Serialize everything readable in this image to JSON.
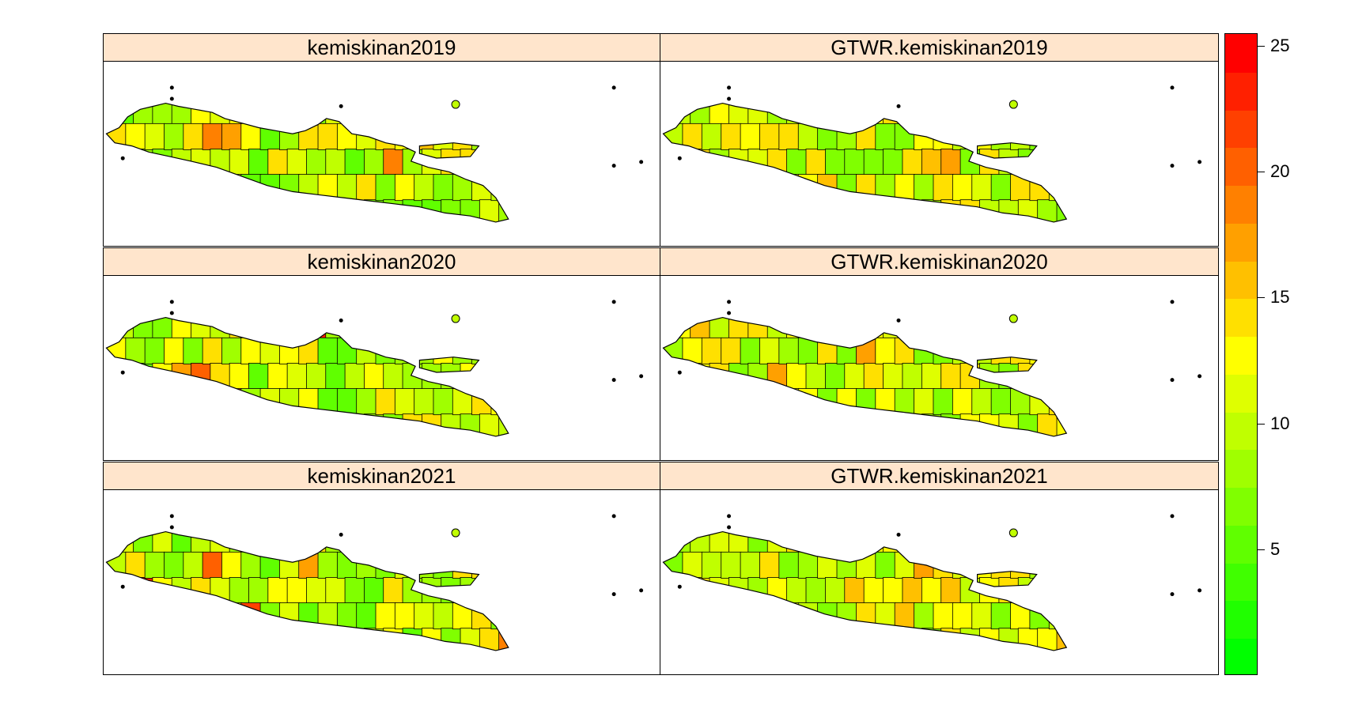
{
  "figure": {
    "panels": [
      {
        "title": "kemiskinan2019"
      },
      {
        "title": "GTWR.kemiskinan2019"
      },
      {
        "title": "kemiskinan2020"
      },
      {
        "title": "GTWR.kemiskinan2020"
      },
      {
        "title": "kemiskinan2021"
      },
      {
        "title": "GTWR.kemiskinan2021"
      }
    ]
  },
  "legend": {
    "min": 0,
    "max": 25.5,
    "ticks": [
      "5",
      "10",
      "15",
      "20",
      "25"
    ],
    "tick_values": [
      5,
      10,
      15,
      20,
      25
    ],
    "colors": [
      "#00ff00",
      "#20ff00",
      "#40ff00",
      "#60ff00",
      "#80ff00",
      "#a0ff00",
      "#c0ff00",
      "#dfff00",
      "#ffff00",
      "#ffe000",
      "#ffc000",
      "#ffa000",
      "#ff8000",
      "#ff6000",
      "#ff4000",
      "#ff2000",
      "#ff0000"
    ]
  },
  "chart_data": {
    "type": "map",
    "region": "Java, Indonesia (regency/city polygons)",
    "panels": [
      "kemiskinan2019",
      "GTWR.kemiskinan2019",
      "kemiskinan2020",
      "GTWR.kemiskinan2020",
      "kemiskinan2021",
      "GTWR.kemiskinan2021"
    ],
    "colorbar_range": [
      0,
      25.5
    ],
    "colorbar_ticks": [
      5,
      10,
      15,
      20,
      25
    ]
  }
}
